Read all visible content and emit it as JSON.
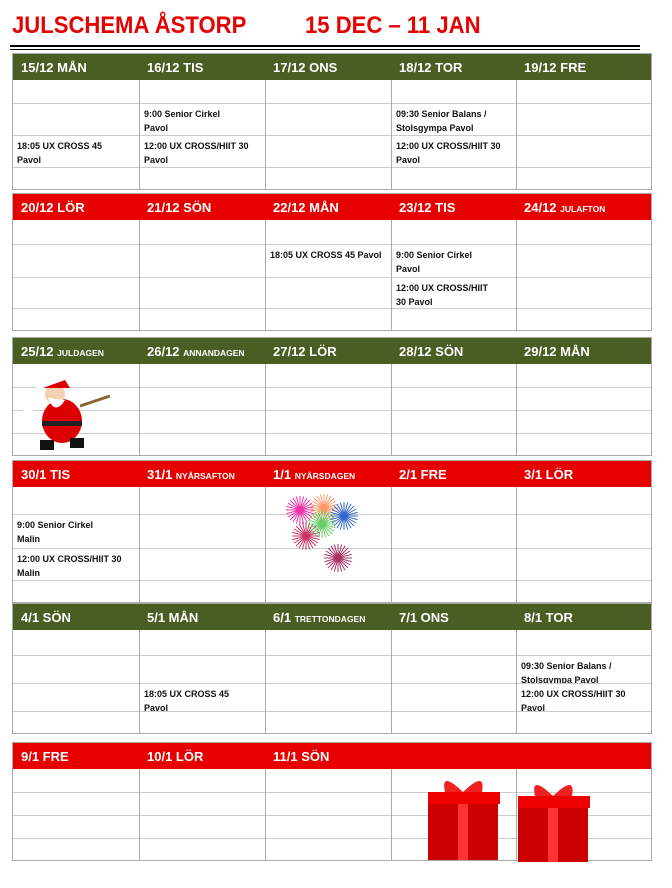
{
  "title": {
    "left": "JULSCHEMA   ÅSTORP",
    "right": "15 DEC – 11 JAN"
  },
  "colors": {
    "green": "#4a5e23",
    "red": "#e60000"
  },
  "weeks": [
    {
      "color": "green",
      "days": [
        {
          "label": "15/12 MÅN",
          "small": "",
          "rows": [
            "",
            "",
            "18:05 UX CROSS 45\nPavol",
            ""
          ]
        },
        {
          "label": "16/12 TIS",
          "small": "",
          "rows": [
            "",
            "9:00 Senior Cirkel\nPavol",
            "12:00 UX CROSS/HIIT 30\nPavol",
            ""
          ]
        },
        {
          "label": "17/12 ONS",
          "small": "",
          "rows": [
            "",
            "",
            "",
            ""
          ]
        },
        {
          "label": "18/12 TOR",
          "small": "",
          "rows": [
            "",
            "09:30 Senior Balans /\nStolsgympa  Pavol",
            "12:00 UX CROSS/HIIT 30\nPavol",
            ""
          ]
        },
        {
          "label": "19/12 FRE",
          "small": "",
          "rows": [
            "",
            "",
            "",
            ""
          ]
        }
      ]
    },
    {
      "color": "red",
      "days": [
        {
          "label": "20/12 LÖR",
          "small": "",
          "rows": [
            "",
            "",
            "",
            ""
          ]
        },
        {
          "label": "21/12 SÖN",
          "small": "",
          "rows": [
            "",
            "",
            "",
            ""
          ]
        },
        {
          "label": "22/12 MÅN",
          "small": "",
          "rows": [
            "",
            "18:05 UX CROSS 45 Pavol",
            "",
            ""
          ]
        },
        {
          "label": "23/12 TIS",
          "small": "",
          "rows": [
            "",
            "9:00 Senior Cirkel\nPavol",
            "12:00 UX CROSS/HIIT\n30 Pavol",
            ""
          ]
        },
        {
          "label": "24/12 ",
          "small": "JULAFTON",
          "rows": [
            "",
            "",
            "",
            ""
          ]
        }
      ]
    },
    {
      "color": "green",
      "days": [
        {
          "label": "25/12 ",
          "small": "JULDAGEN",
          "rows": [
            "",
            "",
            "",
            ""
          ]
        },
        {
          "label": "26/12 ",
          "small": "ANNANDAGEN",
          "rows": [
            "",
            "",
            "",
            ""
          ]
        },
        {
          "label": "27/12 LÖR",
          "small": "",
          "rows": [
            "",
            "",
            "",
            ""
          ]
        },
        {
          "label": "28/12 SÖN",
          "small": "",
          "rows": [
            "",
            "",
            "",
            ""
          ]
        },
        {
          "label": "29/12 MÅN",
          "small": "",
          "rows": [
            "",
            "",
            "",
            ""
          ]
        }
      ]
    },
    {
      "color": "red",
      "days": [
        {
          "label": "30/1      TIS",
          "small": "",
          "rows": [
            "",
            "9:00 Senior Cirkel\nMalin",
            "12:00 UX CROSS/HIIT 30\nMalin",
            ""
          ]
        },
        {
          "label": "31/1 ",
          "small": "NYÅRSAFTON",
          "rows": [
            "",
            "",
            "",
            ""
          ]
        },
        {
          "label": "1/1 ",
          "small": "NYÅRSDAGEN",
          "rows": [
            "",
            "",
            "",
            ""
          ]
        },
        {
          "label": "2/1 FRE",
          "small": "",
          "rows": [
            "",
            "",
            "",
            ""
          ]
        },
        {
          "label": "3/1 LÖR",
          "small": "",
          "rows": [
            "",
            "",
            "",
            ""
          ]
        }
      ]
    },
    {
      "color": "green",
      "days": [
        {
          "label": "4/1 SÖN",
          "small": "",
          "rows": [
            "",
            "",
            "",
            ""
          ]
        },
        {
          "label": "5/1 MÅN",
          "small": "",
          "rows": [
            "",
            "",
            "18:05 UX CROSS 45\nPavol",
            ""
          ]
        },
        {
          "label": "6/1 ",
          "small": "TRETTONDAGEN",
          "rows": [
            "",
            "",
            "",
            ""
          ]
        },
        {
          "label": "7/1 ONS",
          "small": "",
          "rows": [
            "",
            "",
            "",
            ""
          ]
        },
        {
          "label": "8/1 TOR",
          "small": "",
          "rows": [
            "",
            "09:30 Senior Balans /\nStolsgympa  Pavol",
            "12:00 UX CROSS/HIIT 30\nPavol",
            ""
          ]
        }
      ]
    },
    {
      "color": "red",
      "days": [
        {
          "label": "9/1 FRE",
          "small": "",
          "rows": [
            "",
            "",
            "",
            ""
          ]
        },
        {
          "label": "10/1 LÖR",
          "small": "",
          "rows": [
            "",
            "",
            "",
            ""
          ]
        },
        {
          "label": "11/1 SÖN",
          "small": "",
          "rows": [
            "",
            "",
            "",
            ""
          ]
        },
        {
          "label": "",
          "small": "",
          "rows": [
            "",
            "",
            "",
            ""
          ]
        },
        {
          "label": "",
          "small": "",
          "rows": [
            "",
            "",
            "",
            ""
          ]
        }
      ]
    }
  ]
}
